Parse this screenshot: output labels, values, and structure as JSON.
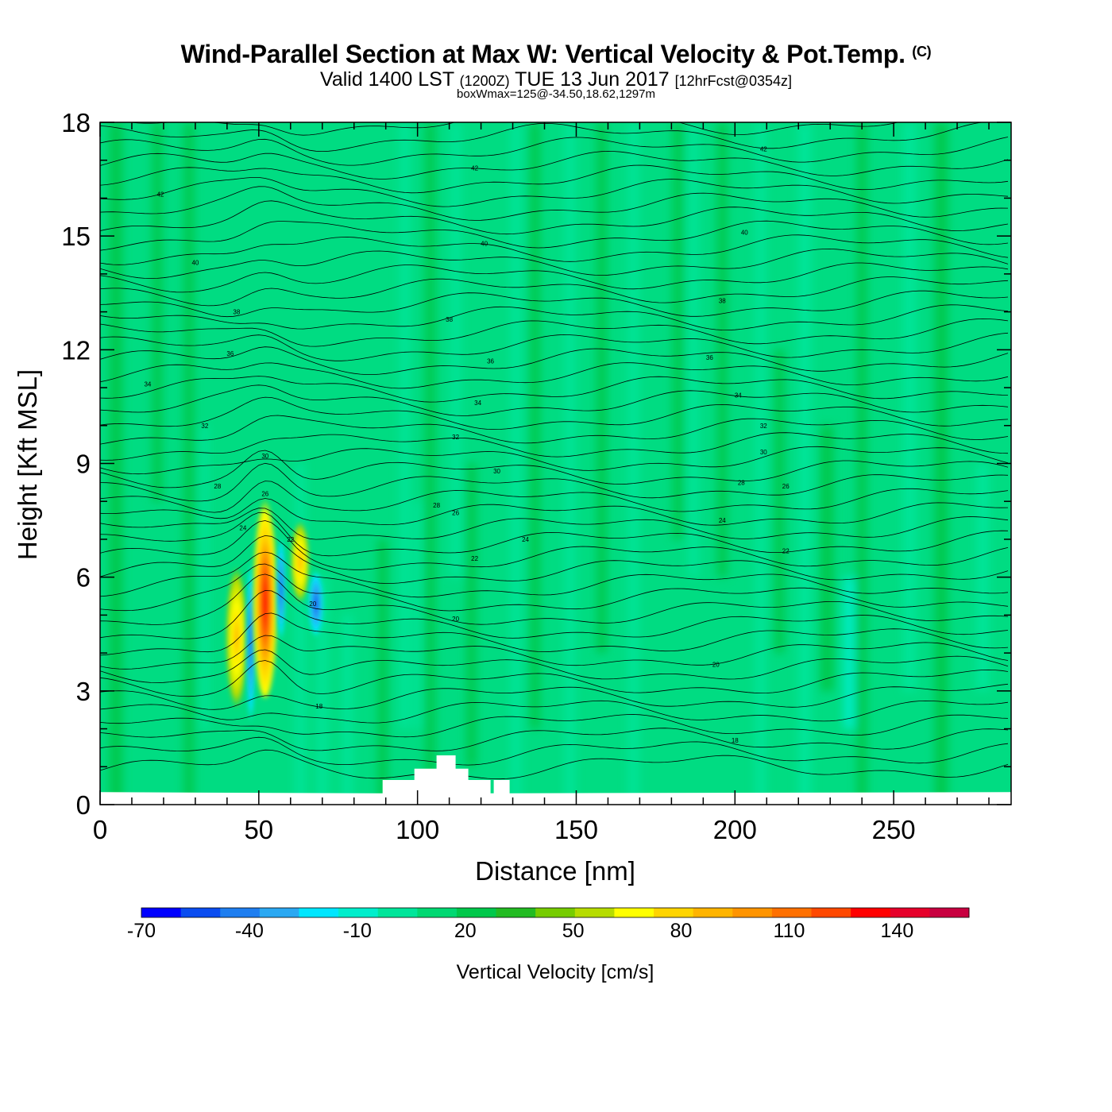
{
  "header": {
    "title_main": "Wind-Parallel Section at Max W: Vertical Velocity & Pot.Temp.",
    "copyright_mark": "(C)",
    "valid_prefix": "Valid 1400 LST",
    "valid_utc": "(1200Z)",
    "valid_date": "TUE 13 Jun 2017",
    "forecast_info": "[12hrFcst@0354z]",
    "box_info": "boxWmax=125@-34.50,18.62,1297m"
  },
  "chart_data": {
    "type": "heatmap",
    "title": "Wind-Parallel Section at Max W: Vertical Velocity & Pot.Temp.",
    "xlabel": "Distance [nm]",
    "ylabel": "Height [Kft MSL]",
    "xlim": [
      0,
      287
    ],
    "ylim": [
      0,
      18
    ],
    "x_ticks": [
      "0",
      "50",
      "100",
      "150",
      "200",
      "250"
    ],
    "y_ticks": [
      "0",
      "3",
      "6",
      "9",
      "12",
      "15",
      "18"
    ],
    "colorbar": {
      "label": "Vertical Velocity [cm/s]",
      "min": -70,
      "max": 160,
      "step": 10,
      "tick_labels": [
        "-70",
        "-40",
        "-10",
        "20",
        "50",
        "80",
        "110",
        "140"
      ],
      "colors": [
        "#0000ff",
        "#0a4cf0",
        "#1e7ef0",
        "#2aa8f2",
        "#00e6ff",
        "#00eecc",
        "#00e59a",
        "#00d872",
        "#00c84b",
        "#22bb22",
        "#76cc00",
        "#b6dc00",
        "#ffff00",
        "#ffd400",
        "#ffb400",
        "#ff9400",
        "#ff7000",
        "#ff4800",
        "#ff0000",
        "#e6002a",
        "#c80040"
      ]
    },
    "field_background": "#00dc82",
    "terrain": [
      [
        87,
        0.3
      ],
      [
        89,
        0.3
      ],
      [
        89,
        0.65
      ],
      [
        99,
        0.65
      ],
      [
        99,
        0.95
      ],
      [
        106,
        0.95
      ],
      [
        106,
        1.3
      ],
      [
        112,
        1.3
      ],
      [
        112,
        0.95
      ],
      [
        116,
        0.95
      ],
      [
        116,
        0.65
      ],
      [
        123,
        0.65
      ],
      [
        123,
        0.3
      ],
      [
        124,
        0.3
      ],
      [
        124,
        0.65
      ],
      [
        129,
        0.65
      ],
      [
        129,
        0.3
      ]
    ],
    "surface_height": 0.33,
    "updraft_core": {
      "x": 52,
      "z": 5.0,
      "max_w": 125,
      "height_m": 1297
    },
    "theta_contour_labels": [
      {
        "x": 19,
        "z": 16.1,
        "text": "42"
      },
      {
        "x": 30,
        "z": 14.3,
        "text": "40"
      },
      {
        "x": 43,
        "z": 13.0,
        "text": "38"
      },
      {
        "x": 41,
        "z": 11.9,
        "text": "36"
      },
      {
        "x": 15,
        "z": 11.1,
        "text": "34"
      },
      {
        "x": 33,
        "z": 10.0,
        "text": "32"
      },
      {
        "x": 52,
        "z": 9.2,
        "text": "30"
      },
      {
        "x": 37,
        "z": 8.4,
        "text": "28"
      },
      {
        "x": 52,
        "z": 8.2,
        "text": "26"
      },
      {
        "x": 45,
        "z": 7.3,
        "text": "24"
      },
      {
        "x": 60,
        "z": 7.0,
        "text": "22"
      },
      {
        "x": 67,
        "z": 5.3,
        "text": "20"
      },
      {
        "x": 69,
        "z": 2.6,
        "text": "18"
      },
      {
        "x": 118,
        "z": 16.8,
        "text": "42"
      },
      {
        "x": 121,
        "z": 14.8,
        "text": "40"
      },
      {
        "x": 110,
        "z": 12.8,
        "text": "38"
      },
      {
        "x": 123,
        "z": 11.7,
        "text": "36"
      },
      {
        "x": 119,
        "z": 10.6,
        "text": "34"
      },
      {
        "x": 112,
        "z": 9.7,
        "text": "32"
      },
      {
        "x": 125,
        "z": 8.8,
        "text": "30"
      },
      {
        "x": 106,
        "z": 7.9,
        "text": "28"
      },
      {
        "x": 112,
        "z": 7.7,
        "text": "26"
      },
      {
        "x": 134,
        "z": 7.0,
        "text": "24"
      },
      {
        "x": 118,
        "z": 6.5,
        "text": "22"
      },
      {
        "x": 112,
        "z": 4.9,
        "text": "20"
      },
      {
        "x": 209,
        "z": 17.3,
        "text": "42"
      },
      {
        "x": 203,
        "z": 15.1,
        "text": "40"
      },
      {
        "x": 196,
        "z": 13.3,
        "text": "38"
      },
      {
        "x": 192,
        "z": 11.8,
        "text": "36"
      },
      {
        "x": 201,
        "z": 10.8,
        "text": "34"
      },
      {
        "x": 209,
        "z": 10.0,
        "text": "32"
      },
      {
        "x": 209,
        "z": 9.3,
        "text": "30"
      },
      {
        "x": 202,
        "z": 8.5,
        "text": "28"
      },
      {
        "x": 216,
        "z": 8.4,
        "text": "26"
      },
      {
        "x": 196,
        "z": 7.5,
        "text": "24"
      },
      {
        "x": 216,
        "z": 6.7,
        "text": "22"
      },
      {
        "x": 194,
        "z": 3.7,
        "text": "20"
      },
      {
        "x": 200,
        "z": 1.7,
        "text": "18"
      }
    ]
  }
}
